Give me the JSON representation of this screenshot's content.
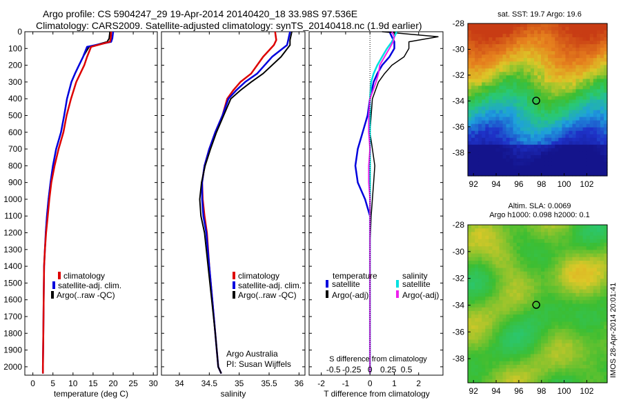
{
  "header": {
    "line1": "Argo profile: CS 5904247_29 19-Apr-2014 20140420_18 33.98S 97.536E",
    "line2": "Climatology: CARS2009. Satellite-adjusted climatology: synTS_20140418.nc (1.9d earlier)"
  },
  "colors": {
    "climatology": "#dd0000",
    "satellite": "#0000dd",
    "argo": "#000000",
    "sal_satellite": "#00e0e0",
    "sal_argo": "#ee22ee"
  },
  "depth_ticks": [
    0,
    100,
    200,
    300,
    400,
    500,
    600,
    700,
    800,
    900,
    1000,
    1100,
    1200,
    1300,
    1400,
    1500,
    1600,
    1700,
    1800,
    1900,
    2000
  ],
  "panel1": {
    "xlabel": "temperature (deg C)",
    "xlim": [
      -2,
      31
    ],
    "xticks": [
      0,
      5,
      10,
      15,
      20,
      25,
      30
    ],
    "legend": [
      "climatology",
      "satellite-adj. clim.",
      "Argo(..raw -QC)"
    ]
  },
  "panel2": {
    "xlabel": "salinity",
    "xlim": [
      33.7,
      36.1
    ],
    "xticks": [
      "34",
      "34.5",
      "35",
      "35.5",
      "36"
    ],
    "legend": [
      "climatology",
      "satellite-adj. clim.",
      "Argo(..raw -QC)"
    ],
    "note1": "Argo Australia",
    "note2": "PI: Susan Wijffels"
  },
  "panel3": {
    "xlabel": "T difference from climatology",
    "xlim": [
      -2.5,
      3.0
    ],
    "xticks": [
      "-2",
      "-1",
      "0",
      "1",
      "2"
    ],
    "top_label": "S difference from climatology",
    "sticks": [
      "-0.5",
      "-0.25",
      "0",
      "0.25",
      "0.5"
    ],
    "legend_temp": "temperature",
    "legend_sal": "salinity",
    "legend_items": [
      "satellite",
      "Argo(-adj)",
      "satellite",
      "Argo(-adj)"
    ]
  },
  "map_top": {
    "title": "sat. SST: 19.7 Argo: 19.6",
    "yticks": [
      "-28",
      "-30",
      "-32",
      "-34",
      "-36",
      "-38"
    ],
    "xticks": [
      "92",
      "94",
      "96",
      "98",
      "100",
      "102"
    ]
  },
  "map_bottom": {
    "title1": "Altim. SLA: 0.0069",
    "title2": "Argo h1000: 0.098 h2000: 0.1",
    "yticks": [
      "-28",
      "-30",
      "-32",
      "-34",
      "-36",
      "-38"
    ],
    "xticks": [
      "92",
      "94",
      "96",
      "98",
      "100",
      "102"
    ]
  },
  "watermark": "IMOS 28-Apr-2014 20:01:41",
  "chart_data": [
    {
      "type": "line",
      "xlabel": "temperature (deg C)",
      "ylabel": "",
      "xlim": [
        -2,
        31
      ],
      "ylim": [
        2050,
        0
      ],
      "series": [
        {
          "name": "climatology",
          "x": [
            19.2,
            19,
            18.5,
            14,
            12.5,
            11.5,
            10.5,
            9.6,
            8.5,
            7.8,
            7,
            5.8,
            5,
            4.4,
            3.9,
            3.5,
            3.2,
            3,
            2.8,
            2.7,
            2.6,
            2.5,
            2.5
          ],
          "y": [
            0,
            40,
            60,
            90,
            150,
            200,
            250,
            300,
            400,
            500,
            600,
            700,
            800,
            900,
            1000,
            1100,
            1200,
            1300,
            1400,
            1600,
            1800,
            2000,
            2040
          ]
        },
        {
          "name": "satellite-adj. clim.",
          "x": [
            20,
            19.8,
            19.5,
            13.5,
            12.5,
            11.5,
            10.5,
            9.6,
            8.5,
            7.8,
            7,
            5.8,
            5,
            4.4,
            3.9,
            3.5,
            3.2,
            3,
            2.8,
            2.7,
            2.6,
            2.5,
            2.5
          ],
          "y": [
            0,
            40,
            60,
            90,
            150,
            200,
            250,
            300,
            400,
            500,
            600,
            700,
            800,
            900,
            1000,
            1100,
            1200,
            1300,
            1400,
            1600,
            1800,
            2000,
            2040
          ]
        },
        {
          "name": "Argo(..raw -QC)",
          "x": [
            19.5,
            19.4,
            19.2,
            14.5,
            13.5,
            12.8,
            11.8,
            10.8,
            9.5,
            8.4,
            7.6,
            6.4,
            5.4,
            4.6,
            4.1,
            3.7,
            3.3,
            3,
            2.8,
            2.7,
            2.6,
            2.5,
            2.5
          ],
          "y": [
            0,
            40,
            60,
            90,
            150,
            200,
            250,
            300,
            400,
            500,
            600,
            700,
            800,
            900,
            1000,
            1100,
            1200,
            1300,
            1400,
            1600,
            1800,
            2000,
            2040
          ]
        }
      ]
    },
    {
      "type": "line",
      "xlabel": "salinity",
      "ylabel": "",
      "xlim": [
        33.7,
        36.1
      ],
      "ylim": [
        2050,
        0
      ],
      "series": [
        {
          "name": "climatology",
          "x": [
            35.6,
            35.62,
            35.58,
            35.4,
            35.2,
            35.02,
            34.9,
            34.8,
            34.72,
            34.6,
            34.5,
            34.42,
            34.38,
            34.39,
            34.42,
            34.46,
            34.5,
            34.55,
            34.6,
            34.65,
            34.7
          ],
          "y": [
            0,
            50,
            80,
            150,
            250,
            300,
            350,
            400,
            500,
            600,
            700,
            800,
            900,
            1000,
            1100,
            1200,
            1400,
            1600,
            1800,
            2000,
            2040
          ]
        },
        {
          "name": "satellite-adj. clim.",
          "x": [
            35.85,
            35.82,
            35.8,
            35.55,
            35.3,
            35.1,
            34.95,
            34.82,
            34.72,
            34.6,
            34.5,
            34.42,
            34.38,
            34.38,
            34.4,
            34.45,
            34.5,
            34.55,
            34.6,
            34.65,
            34.7
          ],
          "y": [
            0,
            50,
            80,
            150,
            250,
            300,
            350,
            400,
            500,
            600,
            700,
            800,
            900,
            1000,
            1100,
            1200,
            1400,
            1600,
            1800,
            2000,
            2040
          ]
        },
        {
          "name": "Argo(..raw -QC)",
          "x": [
            35.88,
            35.85,
            35.85,
            35.7,
            35.4,
            35.2,
            35.02,
            34.86,
            34.74,
            34.62,
            34.52,
            34.43,
            34.37,
            34.34,
            34.36,
            34.42,
            34.48,
            34.54,
            34.6,
            34.65,
            34.7
          ],
          "y": [
            0,
            50,
            80,
            150,
            250,
            300,
            350,
            400,
            500,
            600,
            700,
            800,
            900,
            1000,
            1100,
            1200,
            1400,
            1600,
            1800,
            2000,
            2040
          ]
        }
      ]
    },
    {
      "type": "line",
      "xlabel": "T difference from climatology",
      "ylabel": "",
      "xlim": [
        -2.5,
        3.0
      ],
      "ylim": [
        2050,
        0
      ],
      "series": [
        {
          "name": "temperature satellite",
          "x": [
            0.8,
            0.9,
            1.0,
            1.0,
            0.8,
            0.5,
            0.3,
            0.15,
            0,
            -0.1,
            -0.3,
            -0.5,
            -0.6,
            -0.5,
            -0.2,
            0,
            0,
            0,
            0,
            0,
            0
          ],
          "y": [
            0,
            30,
            60,
            100,
            150,
            200,
            250,
            300,
            400,
            500,
            600,
            700,
            800,
            900,
            1000,
            1100,
            1300,
            1500,
            1700,
            1900,
            2040
          ]
        },
        {
          "name": "temperature Argo(-adj)",
          "x": [
            0.5,
            2.8,
            1.6,
            1.6,
            1.4,
            0.9,
            0.6,
            0.35,
            0.1,
            0.05,
            0,
            0.1,
            0.2,
            0.15,
            0.1,
            0.05,
            0,
            0,
            0,
            0,
            0
          ],
          "y": [
            0,
            30,
            60,
            100,
            150,
            200,
            250,
            300,
            400,
            500,
            600,
            700,
            800,
            900,
            1000,
            1100,
            1300,
            1500,
            1700,
            1900,
            2040
          ]
        },
        {
          "name": "salinity satellite",
          "x": [
            1.1,
            1.0,
            0.9,
            0.7,
            0.5,
            0.3,
            0.15,
            0.05,
            0,
            0,
            0,
            0,
            0,
            0,
            0,
            0,
            0,
            0,
            0,
            0,
            0
          ],
          "y": [
            0,
            30,
            60,
            100,
            150,
            200,
            250,
            300,
            400,
            500,
            600,
            700,
            800,
            900,
            1000,
            1100,
            1300,
            1500,
            1700,
            1900,
            2040
          ]
        },
        {
          "name": "salinity Argo(-adj)",
          "x": [
            0.9,
            1.0,
            0.95,
            0.8,
            0.6,
            0.4,
            0.35,
            0.25,
            0,
            -0.05,
            -0.05,
            0,
            -0.05,
            -0.05,
            0,
            0,
            0,
            0,
            0,
            0,
            0
          ],
          "y": [
            0,
            30,
            60,
            100,
            150,
            200,
            250,
            300,
            400,
            500,
            600,
            700,
            800,
            900,
            1000,
            1100,
            1300,
            1500,
            1700,
            1900,
            2040
          ]
        }
      ]
    },
    {
      "type": "heatmap",
      "title": "sat. SST: 19.7 Argo: 19.6",
      "xlim": [
        91.5,
        103.8
      ],
      "ylim": [
        -39.8,
        -28
      ],
      "marker": {
        "lon": 97.536,
        "lat": -33.98
      }
    },
    {
      "type": "heatmap",
      "title": "Altim. SLA: 0.0069",
      "xlim": [
        91.5,
        103.8
      ],
      "ylim": [
        -39.8,
        -28
      ],
      "marker": {
        "lon": 97.536,
        "lat": -33.98
      }
    }
  ]
}
